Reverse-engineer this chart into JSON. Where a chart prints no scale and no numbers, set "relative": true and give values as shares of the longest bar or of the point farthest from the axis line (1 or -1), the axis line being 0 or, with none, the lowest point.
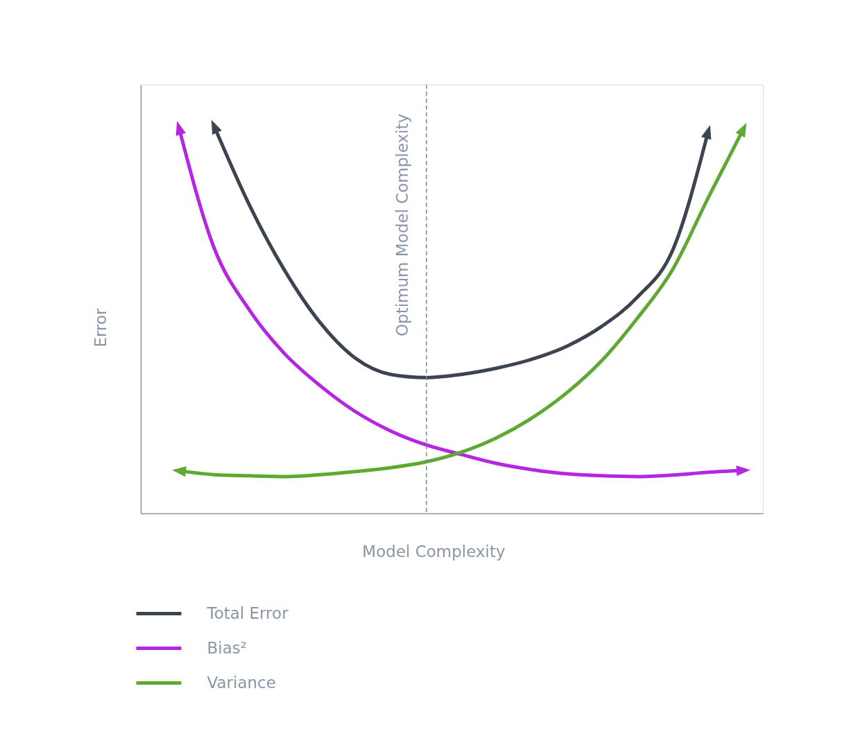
{
  "chart_data": {
    "type": "line",
    "relative": true,
    "xlabel": "Model Complexity",
    "ylabel": "Error",
    "categories": [
      null,
      null,
      null,
      null,
      null,
      null,
      null,
      null,
      null,
      null,
      null,
      null,
      null,
      null,
      null,
      null,
      null
    ],
    "series": [
      {
        "name": "Total Error",
        "color": "#3d4451",
        "values": [
          null,
          1.0,
          0.796,
          0.627,
          0.493,
          0.401,
          0.359,
          0.351,
          0.359,
          0.375,
          0.398,
          0.432,
          0.484,
          0.559,
          0.681,
          0.986,
          null
        ]
      },
      {
        "name": "Bias²",
        "color": "#b526e0",
        "values": [
          0.996,
          0.685,
          0.525,
          0.412,
          0.33,
          0.263,
          0.213,
          0.177,
          0.152,
          0.129,
          0.113,
          0.102,
          0.097,
          0.095,
          0.099,
          0.106,
          0.111
        ]
      },
      {
        "name": "Variance",
        "color": "#5ea833",
        "values": [
          0.11,
          0.1,
          0.097,
          0.095,
          0.1,
          0.108,
          0.118,
          0.133,
          0.158,
          0.195,
          0.246,
          0.312,
          0.396,
          0.505,
          0.631,
          0.815,
          0.993
        ]
      }
    ],
    "annotations": [
      "Optimum Model Complexity"
    ],
    "legend": "bottom left",
    "grid": false,
    "marker": "none",
    "line_style": "solid"
  }
}
